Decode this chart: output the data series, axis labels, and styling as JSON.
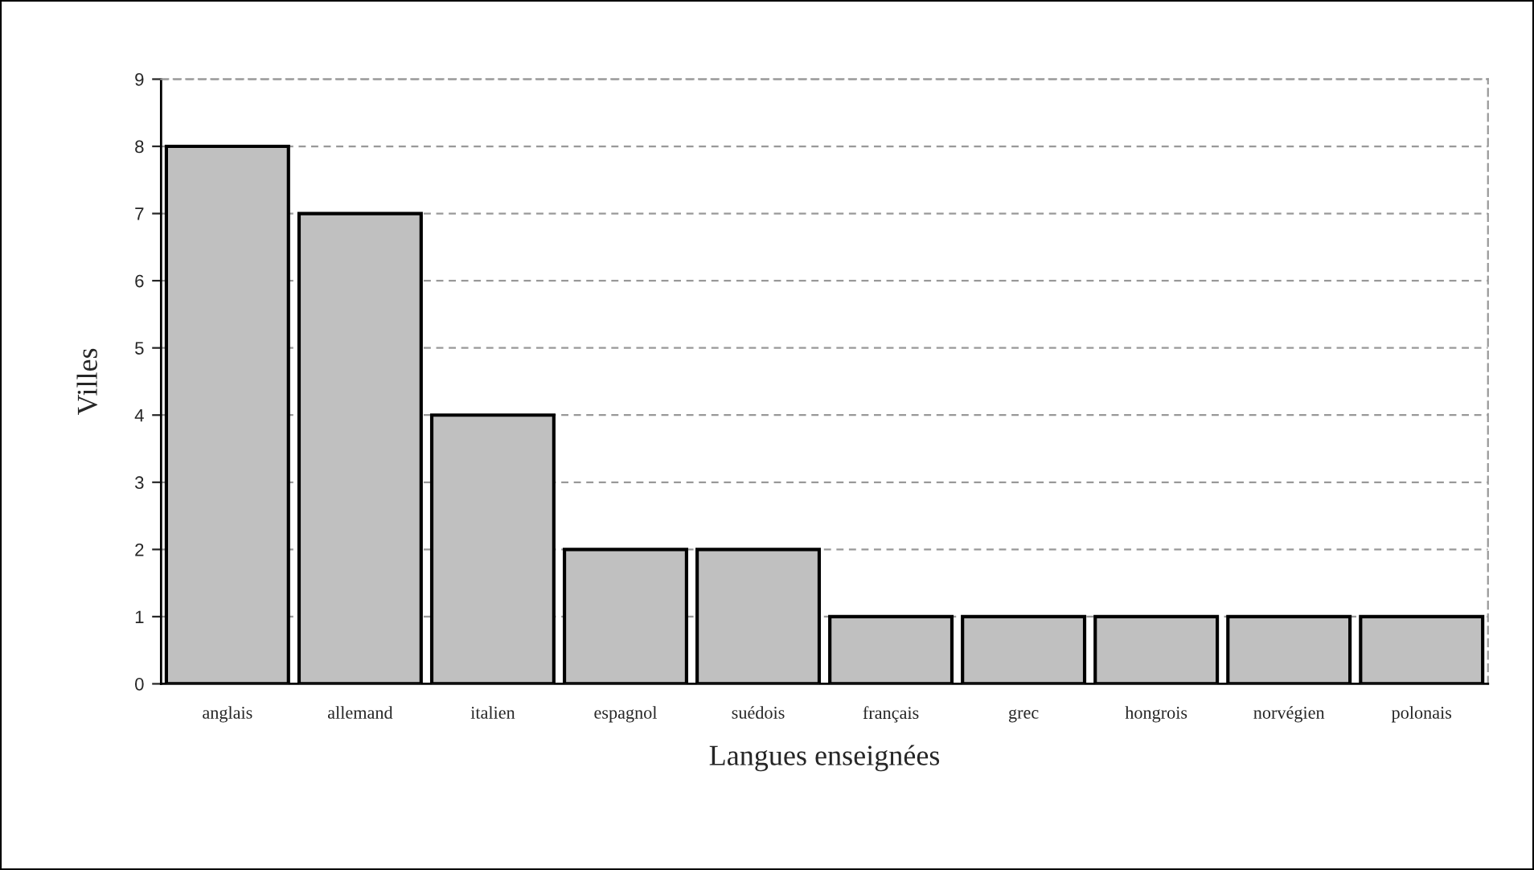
{
  "chart_data": {
    "type": "bar",
    "xlabel": "Langues enseignées",
    "ylabel": "Villes",
    "categories": [
      "anglais",
      "allemand",
      "italien",
      "espagnol",
      "suédois",
      "français",
      "grec",
      "hongrois",
      "norvégien",
      "polonais"
    ],
    "values": [
      8,
      7,
      4,
      2,
      2,
      1,
      1,
      1,
      1,
      1
    ],
    "color": "#c0c0c0",
    "ylim": [
      0,
      9
    ],
    "yticks": [
      0,
      1,
      2,
      3,
      4,
      5,
      6,
      7,
      8,
      9
    ],
    "grid": "y",
    "legend": false
  }
}
